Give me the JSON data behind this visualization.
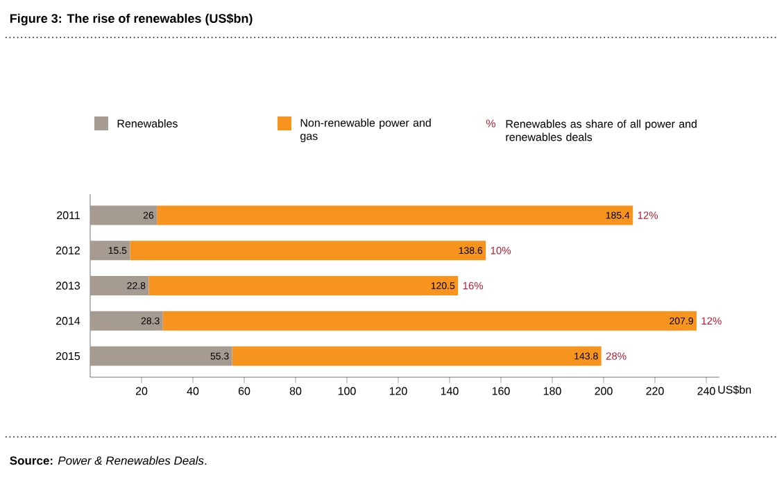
{
  "chart_data": {
    "type": "bar",
    "orientation": "horizontal",
    "stacked": true,
    "title": "Figure 3: The rise of renewables (US$bn)",
    "xlabel": "US$bn",
    "categories": [
      "2011",
      "2012",
      "2013",
      "2014",
      "2015"
    ],
    "series": [
      {
        "name": "Renewables",
        "color": "#a59b91",
        "values": [
          26,
          15.5,
          22.8,
          28.3,
          55.3
        ]
      },
      {
        "name": "Non-renewable power and gas",
        "color": "#f7941d",
        "values": [
          185.4,
          138.6,
          120.5,
          207.9,
          143.8
        ]
      }
    ],
    "data_labels": true,
    "legend": "top",
    "xlim": [
      0,
      245
    ],
    "xticks": [
      20,
      40,
      60,
      80,
      100,
      120,
      140,
      160,
      180,
      200,
      220,
      240
    ],
    "annotations": [
      {
        "text": "12%",
        "x": 211.4,
        "y": "2011"
      },
      {
        "text": "10%",
        "x": 154.1,
        "y": "2012"
      },
      {
        "text": "16%",
        "x": 143.3,
        "y": "2013"
      },
      {
        "text": "12%",
        "x": 236.2,
        "y": "2014"
      },
      {
        "text": "28%",
        "x": 199.1,
        "y": "2015"
      },
      "%",
      "Renewables as share of all power and renewables deals",
      "**Source:** *Power & Renewables Deals*."
    ]
  }
}
